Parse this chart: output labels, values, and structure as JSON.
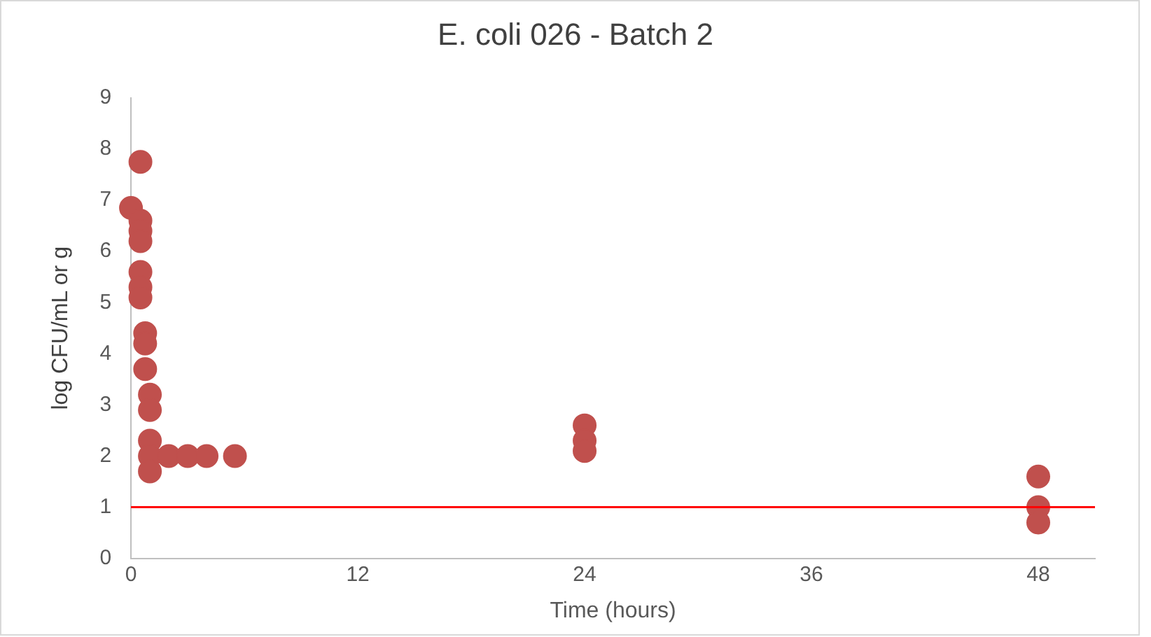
{
  "chart_data": {
    "type": "scatter",
    "title": "E. coli 026 - Batch 2",
    "xlabel": "Time (hours)",
    "ylabel": "log CFU/mL or g",
    "series": [
      {
        "color": "#c0504d",
        "x": [
          0,
          0.5,
          0.5,
          0.5,
          0.5,
          0.5,
          0.5,
          0.5,
          0.75,
          0.75,
          0.75,
          1,
          1,
          1,
          1,
          1,
          2,
          3,
          4,
          5.5,
          24,
          24,
          24,
          48,
          48,
          48
        ],
        "values": [
          6.85,
          7.75,
          6.6,
          6.4,
          6.2,
          5.6,
          5.3,
          5.1,
          4.4,
          4.2,
          3.7,
          3.2,
          2.9,
          2.3,
          2.0,
          1.7,
          2,
          2,
          2,
          2,
          2.6,
          2.3,
          2.1,
          1.6,
          1.0,
          0.7
        ]
      }
    ],
    "xlim": [
      0,
      51
    ],
    "xticks": [
      0,
      12,
      24,
      36,
      48
    ],
    "ylim": [
      0,
      9
    ],
    "yticks": [
      0,
      1,
      2,
      3,
      4,
      5,
      6,
      7,
      8,
      9
    ],
    "ref_lines": [
      {
        "axis": "y",
        "value": 1,
        "color": "#ff0000"
      }
    ],
    "grid": false,
    "legend": false,
    "marker": "circle"
  }
}
